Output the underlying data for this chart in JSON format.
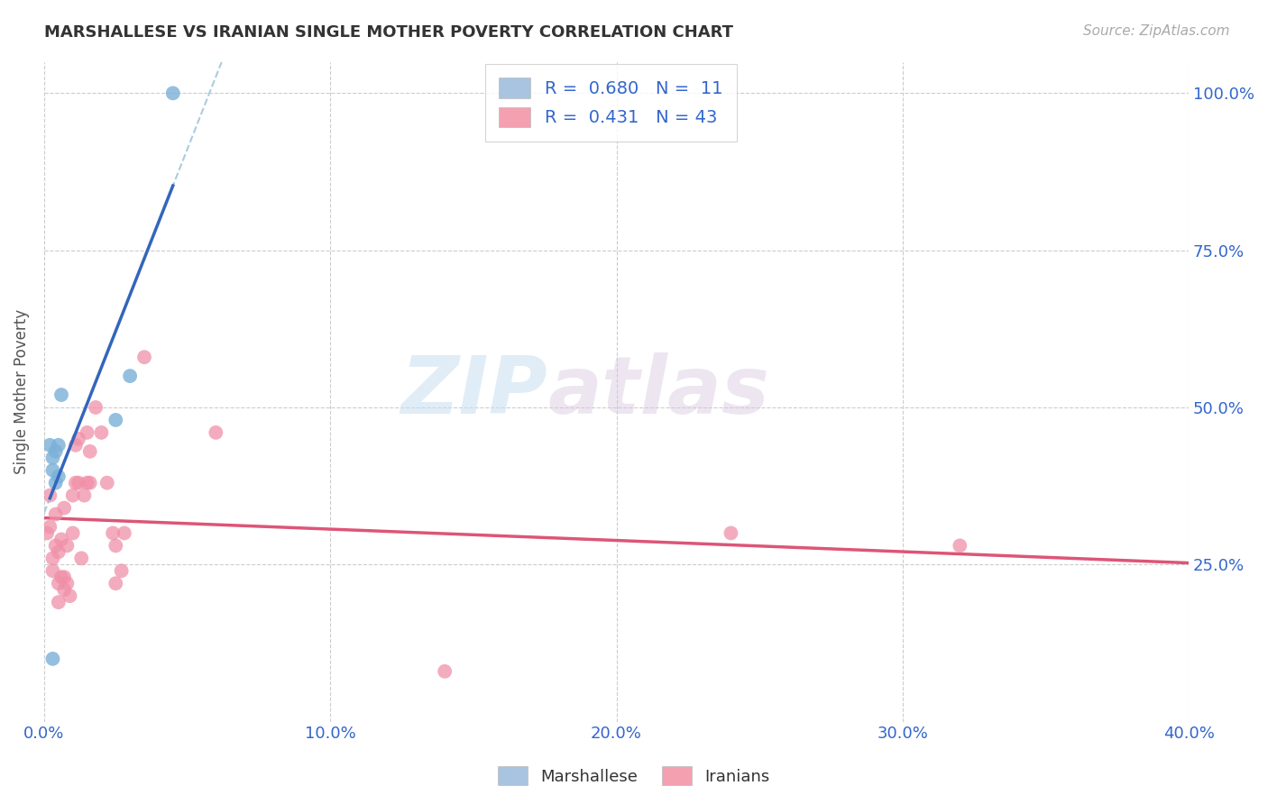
{
  "title": "MARSHALLESE VS IRANIAN SINGLE MOTHER POVERTY CORRELATION CHART",
  "source": "Source: ZipAtlas.com",
  "ylabel": "Single Mother Poverty",
  "xlim": [
    0.0,
    0.4
  ],
  "ylim": [
    0.0,
    1.05
  ],
  "xtick_labels": [
    "0.0%",
    "10.0%",
    "20.0%",
    "30.0%",
    "40.0%"
  ],
  "xtick_vals": [
    0.0,
    0.1,
    0.2,
    0.3,
    0.4
  ],
  "ytick_labels": [
    "25.0%",
    "50.0%",
    "75.0%",
    "100.0%"
  ],
  "ytick_vals": [
    0.25,
    0.5,
    0.75,
    1.0
  ],
  "marshallese_R": 0.68,
  "marshallese_N": 11,
  "iranians_R": 0.431,
  "iranians_N": 43,
  "marshallese_color": "#a8c4e0",
  "iranians_color": "#f4a0b0",
  "marshallese_scatter_color": "#7ab0d8",
  "iranians_scatter_color": "#f090a8",
  "trend_marshallese_color": "#3366bb",
  "trend_iranians_color": "#dd5577",
  "trend_dashed_color": "#aaccdd",
  "watermark_zip": "ZIP",
  "watermark_atlas": "atlas",
  "marshallese_x": [
    0.002,
    0.003,
    0.003,
    0.004,
    0.004,
    0.005,
    0.005,
    0.006,
    0.025,
    0.03,
    0.045
  ],
  "marshallese_y": [
    0.44,
    0.4,
    0.42,
    0.43,
    0.38,
    0.44,
    0.39,
    0.52,
    0.48,
    0.55,
    1.0
  ],
  "marshallese_outlier_x": [
    0.003
  ],
  "marshallese_outlier_y": [
    0.1
  ],
  "iranians_x": [
    0.001,
    0.002,
    0.002,
    0.003,
    0.003,
    0.004,
    0.004,
    0.005,
    0.005,
    0.005,
    0.006,
    0.006,
    0.007,
    0.007,
    0.007,
    0.008,
    0.008,
    0.009,
    0.01,
    0.01,
    0.011,
    0.011,
    0.012,
    0.012,
    0.013,
    0.014,
    0.015,
    0.015,
    0.016,
    0.016,
    0.018,
    0.02,
    0.022,
    0.024,
    0.025,
    0.025,
    0.027,
    0.028,
    0.035,
    0.06,
    0.14,
    0.24,
    0.32
  ],
  "iranians_y": [
    0.3,
    0.36,
    0.31,
    0.26,
    0.24,
    0.33,
    0.28,
    0.27,
    0.22,
    0.19,
    0.29,
    0.23,
    0.34,
    0.21,
    0.23,
    0.22,
    0.28,
    0.2,
    0.36,
    0.3,
    0.44,
    0.38,
    0.38,
    0.45,
    0.26,
    0.36,
    0.46,
    0.38,
    0.38,
    0.43,
    0.5,
    0.46,
    0.38,
    0.3,
    0.22,
    0.28,
    0.24,
    0.3,
    0.58,
    0.46,
    0.08,
    0.3,
    0.28
  ],
  "background_color": "#ffffff",
  "grid_color": "#cccccc"
}
